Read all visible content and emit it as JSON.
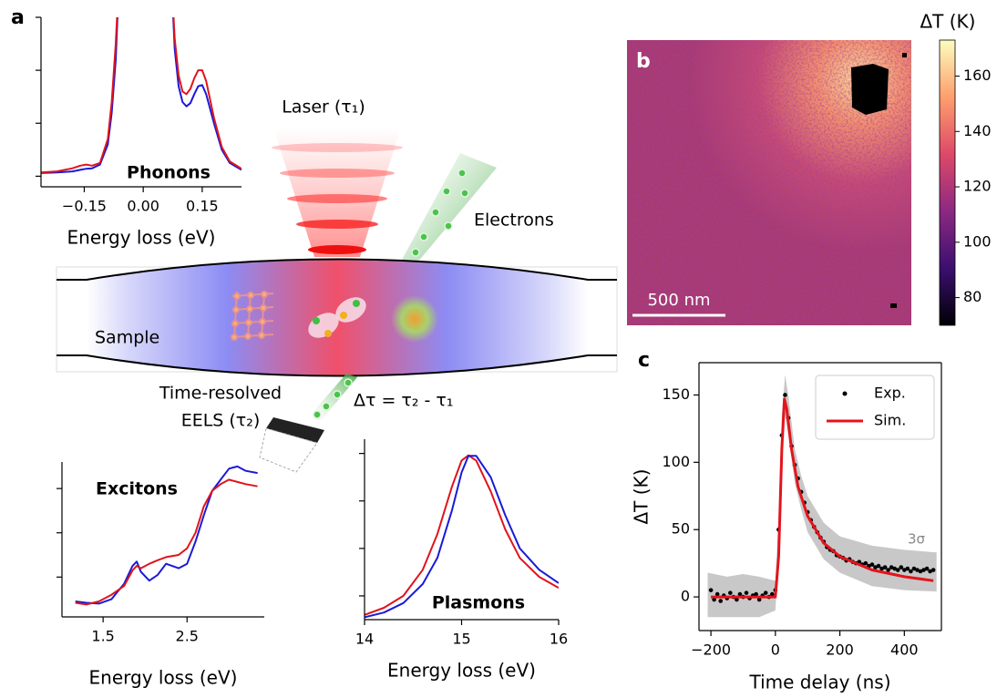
{
  "panels": [
    "a",
    "b",
    "c"
  ],
  "diagram": {
    "laser": "Laser (τ₁)",
    "electrons": "Electrons",
    "sample": "Sample",
    "detector": [
      "Time-resolved",
      "EELS (τ₂)"
    ],
    "delay": "Δτ = τ₂ - τ₁"
  },
  "chart_data": [
    {
      "type": "line",
      "annotation": "Phonons",
      "xlabel": "Energy loss (eV)",
      "x": [
        -0.26,
        -0.22,
        -0.18,
        -0.16,
        -0.145,
        -0.13,
        -0.11,
        -0.09,
        -0.08,
        -0.07,
        -0.06,
        0.07,
        0.08,
        0.09,
        0.1,
        0.11,
        0.12,
        0.13,
        0.14,
        0.15,
        0.16,
        0.18,
        0.2,
        0.22,
        0.25
      ],
      "series": [
        {
          "color": "#1a1ad8",
          "values": [
            0.06,
            0.07,
            0.09,
            0.12,
            0.14,
            0.15,
            0.22,
            0.6,
            1.2,
            2.2,
            4,
            4,
            2.4,
            1.7,
            1.4,
            1.32,
            1.38,
            1.55,
            1.7,
            1.72,
            1.55,
            1.0,
            0.5,
            0.25,
            0.12
          ]
        },
        {
          "color": "#e0141c",
          "values": [
            0.07,
            0.09,
            0.15,
            0.2,
            0.22,
            0.2,
            0.25,
            0.7,
            1.4,
            2.5,
            4,
            4,
            2.6,
            1.9,
            1.6,
            1.55,
            1.65,
            1.85,
            2.0,
            2.0,
            1.8,
            1.1,
            0.55,
            0.28,
            0.14
          ]
        }
      ],
      "xlim": [
        -0.26,
        0.25
      ],
      "xticks": [
        {
          "value": -0.15,
          "label": "−0.15"
        },
        {
          "value": 0,
          "label": "0.00"
        },
        0.15
      ],
      "ylim": [
        -0.2,
        3.0
      ],
      "yticks": [
        0,
        1,
        2,
        3
      ],
      "ytick_labels": false
    },
    {
      "type": "line",
      "annotation": "Excitons",
      "xlabel": "Energy loss (eV)",
      "x": [
        1.17,
        1.3,
        1.45,
        1.6,
        1.75,
        1.85,
        1.9,
        1.95,
        2.05,
        2.15,
        2.25,
        2.4,
        2.5,
        2.6,
        2.7,
        2.8,
        2.9,
        3.0,
        3.1,
        3.2,
        3.34
      ],
      "series": [
        {
          "color": "#1a1ad8",
          "values": [
            0.45,
            0.42,
            0.4,
            0.5,
            0.85,
            1.25,
            1.35,
            1.12,
            0.92,
            1.05,
            1.3,
            1.2,
            1.3,
            1.8,
            2.4,
            2.95,
            3.2,
            3.45,
            3.5,
            3.4,
            3.35
          ]
        },
        {
          "color": "#e0141c",
          "values": [
            0.42,
            0.38,
            0.45,
            0.6,
            0.8,
            1.15,
            1.25,
            1.2,
            1.3,
            1.38,
            1.45,
            1.5,
            1.65,
            2.0,
            2.6,
            2.95,
            3.1,
            3.2,
            3.15,
            3.1,
            3.05
          ]
        }
      ],
      "xlim": [
        1.01,
        3.42
      ],
      "xticks": [
        1.5,
        2.5
      ],
      "ylim": [
        0.1,
        3.6
      ],
      "yticks": [
        1,
        2,
        3
      ],
      "ytick_labels": false
    },
    {
      "type": "line",
      "annotation": "Plasmons",
      "xlabel": "Energy loss (eV)",
      "x": [
        14,
        14.2,
        14.4,
        14.6,
        14.75,
        14.9,
        15.0,
        15.07,
        15.15,
        15.3,
        15.45,
        15.6,
        15.8,
        16
      ],
      "series": [
        {
          "color": "#e0141c",
          "values": [
            0.6,
            0.75,
            1.0,
            1.55,
            2.3,
            3.3,
            3.85,
            3.96,
            3.85,
            3.2,
            2.4,
            1.8,
            1.4,
            1.17
          ]
        },
        {
          "color": "#1a1ad8",
          "values": [
            0.55,
            0.65,
            0.85,
            1.25,
            1.8,
            2.8,
            3.6,
            3.95,
            3.95,
            3.5,
            2.7,
            2.0,
            1.55,
            1.27
          ]
        }
      ],
      "xlim": [
        14,
        16
      ],
      "xticks": [
        14,
        15,
        16
      ],
      "ylim": [
        0.5,
        4.3
      ],
      "yticks": [
        1,
        2,
        3,
        4
      ],
      "ytick_labels": false
    },
    {
      "type": "heatmap",
      "colorbar_label": "ΔT (K)",
      "colormap": "magma",
      "clim": [
        70,
        173
      ],
      "cticks": [
        80,
        100,
        120,
        140,
        160
      ],
      "scale_bar": "500 nm"
    },
    {
      "type": "line",
      "xlabel": "Time delay (ns)",
      "ylabel": "ΔT (K)",
      "legend": "upper right",
      "box": true,
      "band": {
        "name": "3σ",
        "color": "#c8c8c8",
        "x": [
          -210,
          -150,
          -100,
          -50,
          0,
          10,
          20,
          30,
          40,
          60,
          80,
          100,
          150,
          200,
          300,
          400,
          500
        ],
        "lower": [
          -15,
          -15,
          -15,
          -15,
          -10,
          30,
          100,
          135,
          120,
          85,
          65,
          48,
          28,
          18,
          8,
          5,
          4
        ],
        "upper": [
          18,
          15,
          17,
          15,
          12,
          60,
          135,
          165,
          150,
          110,
          90,
          75,
          55,
          45,
          38,
          35,
          33
        ]
      },
      "series": [
        {
          "name": "Exp.",
          "color": "#000000",
          "style": "points",
          "x": [
            -200,
            -190,
            -180,
            -170,
            -160,
            -150,
            -140,
            -130,
            -120,
            -110,
            -100,
            -90,
            -80,
            -70,
            -60,
            -50,
            -40,
            -30,
            -20,
            -10,
            0,
            10,
            20,
            30,
            40,
            50,
            60,
            70,
            80,
            90,
            100,
            110,
            120,
            130,
            140,
            150,
            160,
            170,
            180,
            190,
            200,
            210,
            220,
            230,
            240,
            250,
            260,
            270,
            280,
            290,
            300,
            310,
            320,
            330,
            340,
            350,
            360,
            370,
            380,
            390,
            400,
            410,
            420,
            430,
            440,
            450,
            460,
            470,
            480,
            490
          ],
          "values": [
            5,
            -2,
            2,
            -3,
            1,
            -1,
            3,
            0,
            -2,
            2,
            0,
            3,
            -1,
            1,
            2,
            -2,
            1,
            3,
            0,
            2,
            5,
            50,
            120,
            150,
            133,
            112,
            98,
            88,
            78,
            70,
            63,
            57,
            52,
            48,
            44,
            41,
            37,
            35,
            34,
            31,
            30,
            29,
            27,
            28,
            26,
            25,
            26,
            24,
            25,
            23,
            24,
            22,
            23,
            21,
            22,
            20,
            22,
            21,
            20,
            22,
            20,
            21,
            19,
            21,
            20,
            19,
            20,
            21,
            19,
            20
          ]
        },
        {
          "name": "Sim.",
          "color": "#e3141c",
          "style": "line",
          "x": [
            -200,
            0,
            10,
            20,
            28,
            35,
            50,
            70,
            100,
            150,
            200,
            300,
            400,
            490
          ],
          "values": [
            0,
            0,
            30,
            110,
            147,
            140,
            110,
            82,
            60,
            40,
            30,
            20,
            15,
            12
          ]
        }
      ],
      "xlim": [
        -237,
        515
      ],
      "xticks": [
        {
          "value": -200,
          "label": "−200"
        },
        0,
        200,
        400
      ],
      "ylim": [
        -25,
        174
      ],
      "yticks": [
        0,
        50,
        100,
        150
      ]
    }
  ]
}
